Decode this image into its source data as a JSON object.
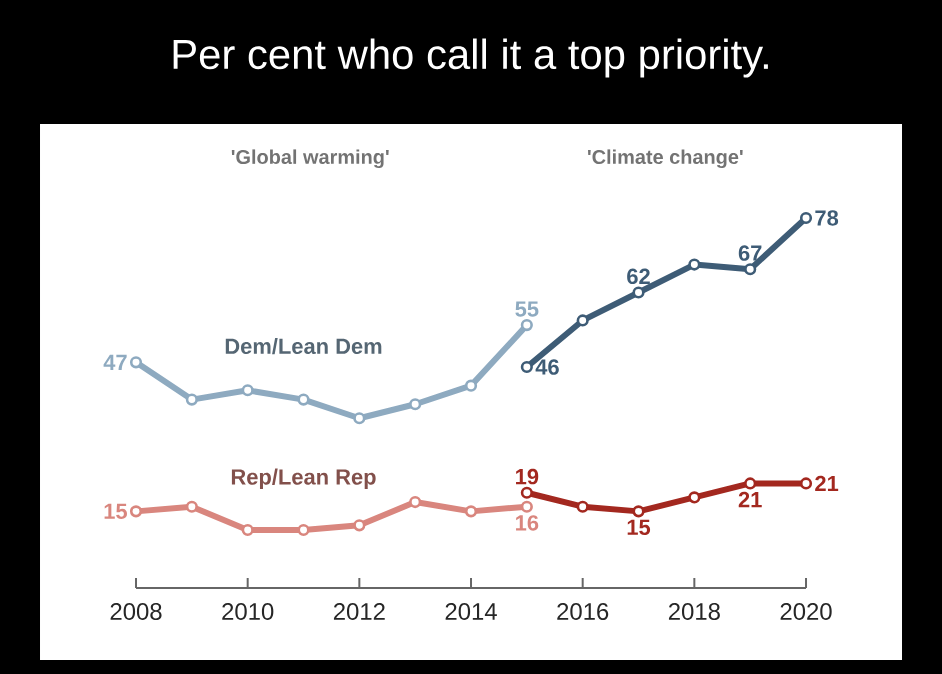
{
  "chart_data": {
    "type": "line",
    "title": "Per cent who call it a top priority.",
    "annotations": [
      "'Global warming'",
      "'Climate change'"
    ],
    "series": [
      {
        "name": "Dem/Lean Dem",
        "color": "#8eaac0",
        "x": [
          2008,
          2009,
          2010,
          2011,
          2012,
          2013,
          2014,
          2015
        ],
        "values": [
          47,
          39,
          41,
          39,
          35,
          38,
          42,
          55
        ],
        "value_labels": [
          "47",
          null,
          null,
          null,
          null,
          null,
          null,
          "55"
        ]
      },
      {
        "color": "#3e5c76",
        "x": [
          2015,
          2016,
          2017,
          2018,
          2019,
          2020
        ],
        "values": [
          46,
          56,
          62,
          68,
          67,
          78
        ],
        "value_labels": [
          "46",
          null,
          "62",
          null,
          "67",
          "78"
        ]
      },
      {
        "name": "Rep/Lean Rep",
        "color": "#d9867e",
        "x": [
          2008,
          2009,
          2010,
          2011,
          2012,
          2013,
          2014,
          2015
        ],
        "values": [
          15,
          16,
          11,
          11,
          12,
          17,
          15,
          16
        ],
        "value_labels": [
          "15",
          null,
          null,
          null,
          null,
          null,
          null,
          "16"
        ]
      },
      {
        "color": "#a3281f",
        "x": [
          2015,
          2016,
          2017,
          2018,
          2019,
          2020
        ],
        "values": [
          19,
          16,
          15,
          18,
          21,
          21
        ],
        "value_labels": [
          "19",
          null,
          "15",
          null,
          "21",
          "21"
        ]
      }
    ],
    "xlim": [
      2008,
      2020
    ],
    "xticks": [
      2008,
      2010,
      2012,
      2014,
      2016,
      2018,
      2020
    ],
    "tick_labels": "x",
    "grid": false,
    "legend": false,
    "marker": "circle",
    "line_style": "solid"
  }
}
